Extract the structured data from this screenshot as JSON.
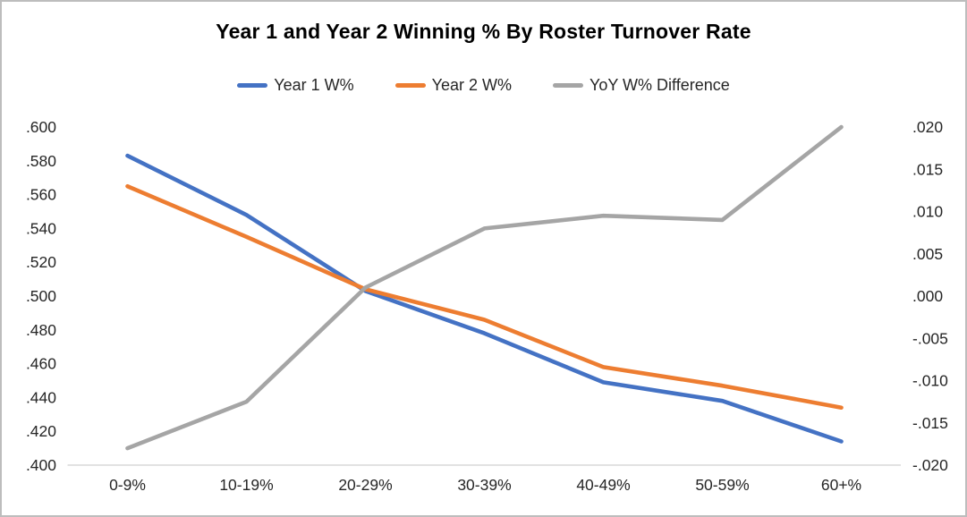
{
  "chart": {
    "title": "Year 1 and Year 2 Winning % By Roster Turnover Rate"
  },
  "chart_data": {
    "type": "line",
    "title": "Year 1 and Year 2 Winning % By Roster Turnover Rate",
    "categories": [
      "0-9%",
      "10-19%",
      "20-29%",
      "30-39%",
      "40-49%",
      "50-59%",
      "60+%"
    ],
    "series": [
      {
        "name": "Year 1 W%",
        "axis": "left",
        "color": "#4472C4",
        "values": [
          0.583,
          0.548,
          0.503,
          0.478,
          0.449,
          0.438,
          0.414
        ]
      },
      {
        "name": "Year 2 W%",
        "axis": "left",
        "color": "#ED7D31",
        "values": [
          0.565,
          0.535,
          0.504,
          0.486,
          0.458,
          0.447,
          0.434
        ]
      },
      {
        "name": "YoY W% Difference",
        "axis": "right",
        "color": "#A5A5A5",
        "values": [
          -0.018,
          -0.0125,
          0.001,
          0.008,
          0.0095,
          0.009,
          0.02
        ]
      }
    ],
    "left_axis": {
      "min": 0.4,
      "max": 0.6,
      "step": 0.02,
      "tick_labels_top_to_bottom": [
        ".600",
        ".580",
        ".560",
        ".540",
        ".520",
        ".500",
        ".480",
        ".460",
        ".440",
        ".420",
        ".400"
      ]
    },
    "right_axis": {
      "min": -0.02,
      "max": 0.02,
      "step": 0.005,
      "tick_labels_top_to_bottom": [
        ".020",
        ".015",
        ".010",
        ".005",
        ".000",
        "-.005",
        "-.010",
        "-.015",
        "-.020"
      ]
    },
    "legend_position": "top",
    "grid": false,
    "axis_line_color": "#D9D9D9",
    "tick_label_color": "#262626"
  }
}
